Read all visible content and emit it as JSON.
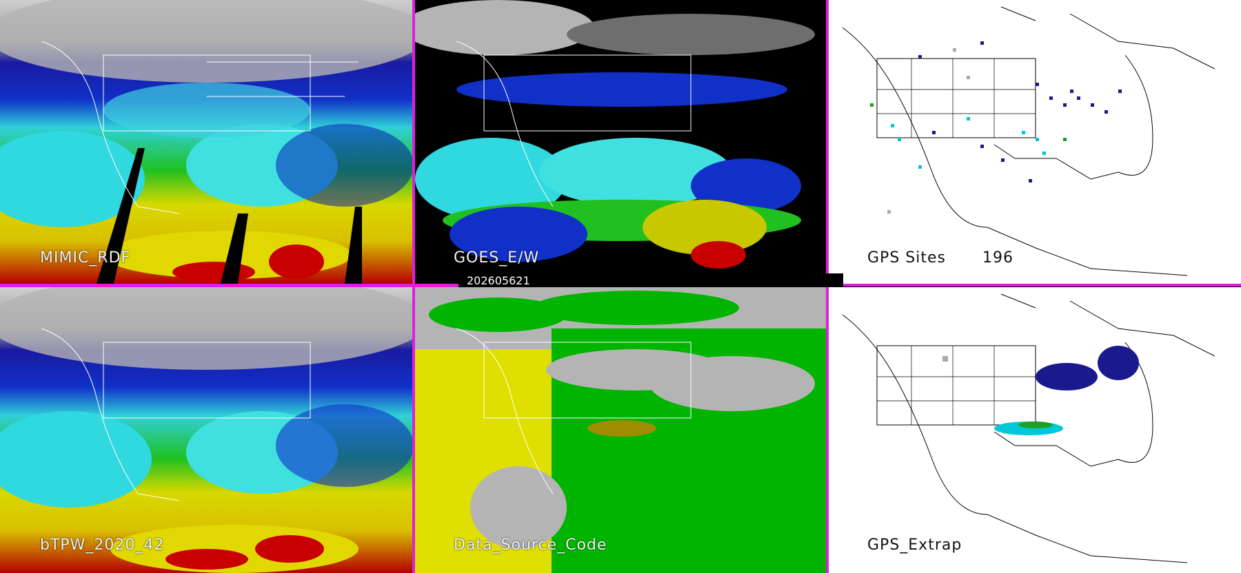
{
  "panels": [
    {
      "id": "p1",
      "label": "MIMIC_RDF"
    },
    {
      "id": "p2",
      "label": "GOES_E/W"
    },
    {
      "id": "p3",
      "label": "GPS Sites",
      "count": "196"
    },
    {
      "id": "p4",
      "label": "bTPW_2020_42"
    },
    {
      "id": "p5",
      "label": "Data_Source_Code"
    },
    {
      "id": "p6",
      "label": "GPS_Extrap"
    }
  ],
  "timestamp": "202605621",
  "colors": {
    "divider": "#e01ee0",
    "background_white": "#ffffff",
    "tpw_palette": [
      "#c8c8c8",
      "#0008a0",
      "#1033d0",
      "#00c8d8",
      "#40e0e0",
      "#00c800",
      "#64e000",
      "#e6e600",
      "#b4a000",
      "#c80000",
      "#6e0000"
    ]
  }
}
